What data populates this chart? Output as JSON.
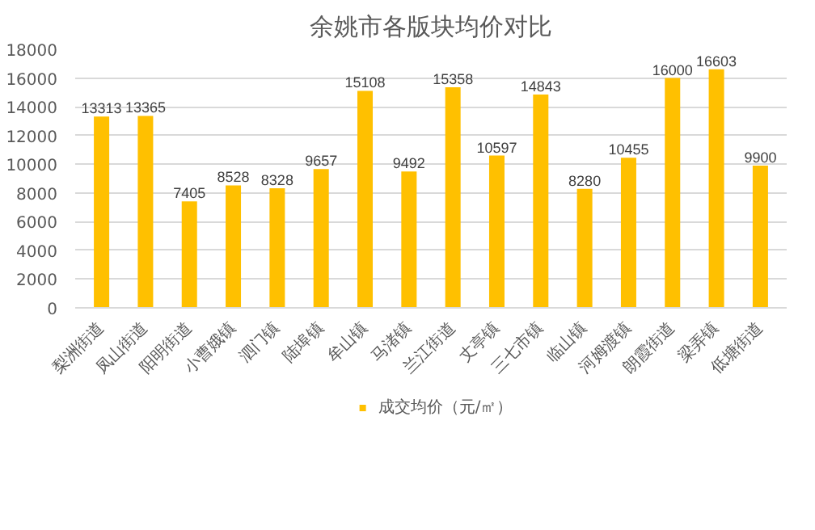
{
  "chart_data": {
    "type": "bar",
    "title": "余姚市各版块均价对比",
    "categories": [
      "梨洲街道",
      "凤山街道",
      "阳明街道",
      "小曹娥镇",
      "泗门镇",
      "陆埠镇",
      "牟山镇",
      "马渚镇",
      "兰江街道",
      "丈亭镇",
      "三七市镇",
      "临山镇",
      "河姆渡镇",
      "朗霞街道",
      "梁弄镇",
      "低塘街道"
    ],
    "series": [
      {
        "name": "成交均价（元/㎡）",
        "color": "#ffc000",
        "values": [
          13313,
          13365,
          7405,
          8528,
          8328,
          9657,
          15108,
          9492,
          15358,
          10597,
          14843,
          8280,
          10455,
          16000,
          16603,
          9900
        ]
      }
    ],
    "ylim": [
      0,
      18000
    ],
    "yticks": [
      0,
      2000,
      4000,
      6000,
      8000,
      10000,
      12000,
      14000,
      16000,
      18000
    ],
    "grid": "y",
    "legend": "bottom",
    "data_labels": true
  }
}
